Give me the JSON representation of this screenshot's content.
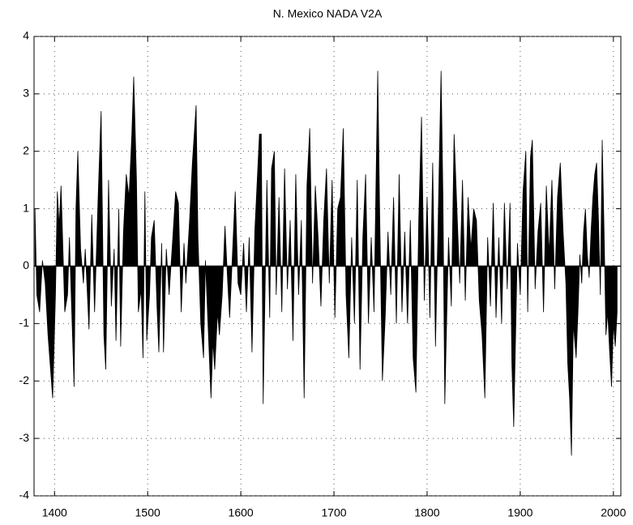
{
  "chart_data": {
    "type": "area",
    "title": "N. Mexico NADA V2A",
    "x": [
      1379,
      1381,
      1384,
      1387,
      1390,
      1393,
      1398,
      1401,
      1403,
      1405,
      1407,
      1409,
      1411,
      1414,
      1416,
      1421,
      1423,
      1425,
      1428,
      1431,
      1433,
      1437,
      1440,
      1443,
      1447,
      1450,
      1453,
      1455,
      1458,
      1461,
      1464,
      1466,
      1469,
      1471,
      1474,
      1477,
      1480,
      1483,
      1485,
      1488,
      1490,
      1493,
      1495,
      1497,
      1499,
      1502,
      1504,
      1507,
      1510,
      1512,
      1515,
      1517,
      1520,
      1523,
      1527,
      1530,
      1533,
      1536,
      1539,
      1541,
      1545,
      1548,
      1552,
      1554,
      1557,
      1560,
      1562,
      1568,
      1570,
      1572,
      1575,
      1577,
      1580,
      1583,
      1586,
      1588,
      1594,
      1597,
      1600,
      1603,
      1606,
      1609,
      1612,
      1615,
      1620,
      1622,
      1624,
      1628,
      1631,
      1633,
      1636,
      1638,
      1641,
      1644,
      1647,
      1650,
      1653,
      1656,
      1659,
      1662,
      1665,
      1668,
      1671,
      1674,
      1677,
      1680,
      1683,
      1686,
      1689,
      1692,
      1695,
      1698,
      1701,
      1704,
      1707,
      1710,
      1713,
      1716,
      1719,
      1722,
      1725,
      1728,
      1731,
      1734,
      1737,
      1740,
      1743,
      1747,
      1749,
      1752,
      1755,
      1758,
      1761,
      1764,
      1767,
      1770,
      1773,
      1776,
      1779,
      1782,
      1785,
      1788,
      1791,
      1794,
      1797,
      1800,
      1803,
      1806,
      1809,
      1812,
      1815,
      1817,
      1819,
      1823,
      1826,
      1829,
      1832,
      1835,
      1838,
      1841,
      1844,
      1847,
      1850,
      1853,
      1856,
      1859,
      1862,
      1865,
      1868,
      1871,
      1874,
      1877,
      1880,
      1883,
      1886,
      1889,
      1891,
      1893,
      1897,
      1900,
      1903,
      1906,
      1908,
      1911,
      1913,
      1916,
      1919,
      1922,
      1925,
      1928,
      1931,
      1934,
      1937,
      1940,
      1943,
      1946,
      1949,
      1951,
      1953,
      1955,
      1957,
      1960,
      1962,
      1964,
      1966,
      1968,
      1970,
      1972,
      1974,
      1976,
      1978,
      1980,
      1982,
      1984,
      1986,
      1988,
      1990,
      1992,
      1994,
      1996,
      1998,
      2000,
      2002,
      2004
    ],
    "series": [
      {
        "color": "#000000",
        "values": [
          1.0,
          -0.5,
          -0.8,
          0.1,
          -0.3,
          -1.2,
          -2.3,
          -0.5,
          1.3,
          0.7,
          1.4,
          0.3,
          -0.8,
          -0.5,
          0.5,
          -2.1,
          1.0,
          2.0,
          0.3,
          -0.3,
          0.3,
          -1.1,
          0.9,
          -0.8,
          1.3,
          2.7,
          -1.2,
          -1.8,
          1.5,
          -0.7,
          0.3,
          -1.3,
          1.0,
          -1.4,
          0.6,
          1.6,
          1.2,
          2.3,
          3.3,
          1.5,
          -0.8,
          -0.4,
          -1.6,
          1.3,
          -1.3,
          -0.5,
          0.5,
          0.8,
          -0.7,
          -1.5,
          0.4,
          -1.5,
          0.3,
          -0.5,
          0.5,
          1.3,
          1.1,
          -0.8,
          0.4,
          -0.3,
          0.8,
          1.8,
          2.8,
          0.5,
          -1.0,
          -1.6,
          0.1,
          -2.3,
          -1.3,
          -1.8,
          -0.8,
          -1.2,
          -0.5,
          0.7,
          -0.3,
          -0.9,
          1.3,
          -0.3,
          -0.5,
          0.4,
          -0.8,
          0.5,
          -1.5,
          0.6,
          2.3,
          2.3,
          -2.4,
          1.5,
          -0.9,
          1.7,
          2.0,
          -0.5,
          1.2,
          -0.8,
          1.7,
          -0.4,
          0.8,
          -1.3,
          1.6,
          -0.5,
          0.8,
          -2.3,
          1.4,
          2.4,
          -0.3,
          1.4,
          0.5,
          -0.7,
          0.8,
          1.7,
          -0.3,
          1.5,
          -0.9,
          1.0,
          1.2,
          2.4,
          -0.5,
          -1.6,
          0.5,
          -1.0,
          1.5,
          -1.8,
          0.5,
          1.6,
          -1.0,
          0.5,
          -0.8,
          3.4,
          1.0,
          -2.0,
          -0.9,
          0.6,
          -0.5,
          1.2,
          -1.0,
          1.6,
          -0.8,
          0.6,
          -1.0,
          0.8,
          -1.6,
          -2.2,
          0.8,
          2.6,
          -0.6,
          1.2,
          -0.9,
          1.8,
          -1.4,
          0.9,
          3.4,
          1.2,
          -2.4,
          0.5,
          -0.7,
          2.3,
          1.0,
          -0.3,
          1.5,
          -0.6,
          1.2,
          0.3,
          1.0,
          0.8,
          -0.6,
          -1.2,
          -2.3,
          0.5,
          -0.7,
          1.1,
          -0.9,
          0.5,
          -1.0,
          1.1,
          -0.4,
          1.1,
          -1.7,
          -2.8,
          0.4,
          -0.5,
          1.3,
          2.0,
          -0.8,
          1.9,
          2.2,
          -0.4,
          0.6,
          1.1,
          -0.8,
          1.4,
          0.2,
          1.5,
          -0.4,
          1.2,
          1.8,
          0.6,
          -0.3,
          -1.7,
          -2.3,
          -3.3,
          -1.0,
          -1.6,
          -0.8,
          0.2,
          -0.3,
          0.6,
          1.0,
          0.2,
          -0.2,
          0.6,
          1.2,
          1.6,
          1.8,
          0.8,
          -0.5,
          2.2,
          0.6,
          -1.2,
          -0.8,
          -1.5,
          -2.1,
          -1.0,
          -1.4,
          -0.8
        ]
      }
    ],
    "xlim": [
      1378,
      2008
    ],
    "ylim": [
      -4,
      4
    ],
    "xticks": [
      1400,
      1500,
      1600,
      1700,
      1800,
      1900,
      2000
    ],
    "yticks": [
      -4,
      -3,
      -2,
      -1,
      0,
      1,
      2,
      3,
      4
    ],
    "grid": true
  }
}
